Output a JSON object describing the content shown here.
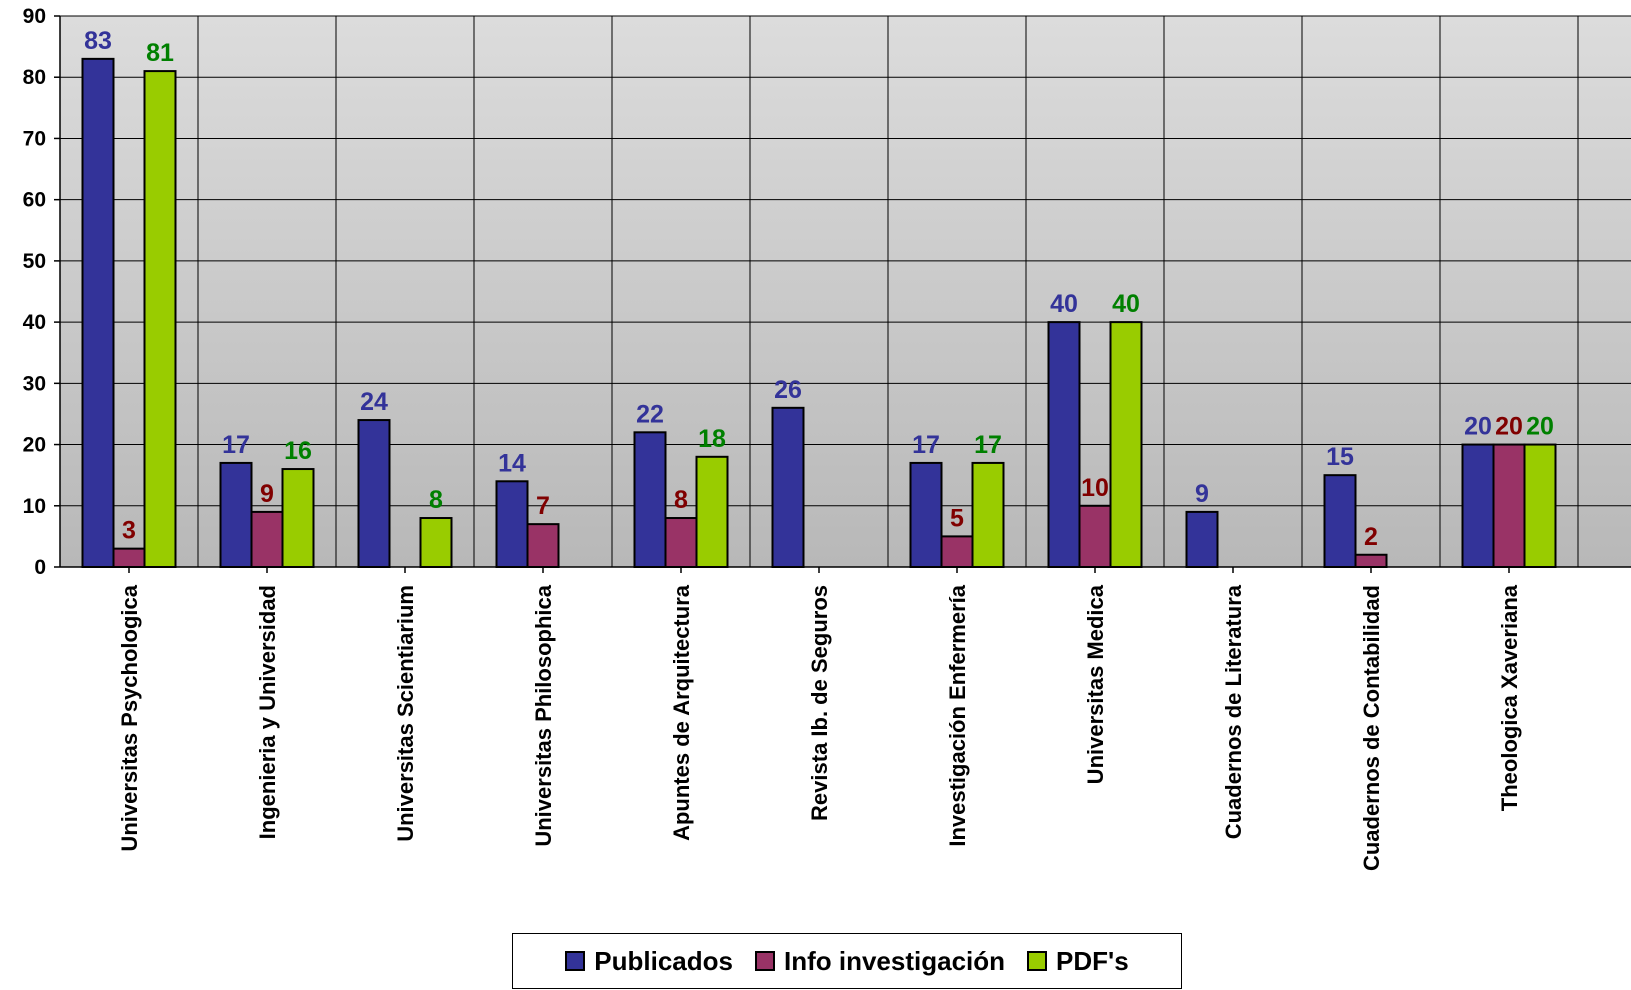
{
  "colors": {
    "publicados": "#333399",
    "info": "#993366",
    "pdf": "#99CC00",
    "label_publicados": "#333399",
    "label_info": "#800000",
    "label_pdf": "#008000"
  },
  "chart_data": {
    "type": "bar",
    "title": "",
    "xlabel": "",
    "ylabel": "",
    "ylim": [
      0,
      90
    ],
    "yticks": [
      0,
      10,
      20,
      30,
      40,
      50,
      60,
      70,
      80,
      90
    ],
    "grid": true,
    "legend_position": "bottom",
    "categories": [
      "Universitas Psychologica",
      "Ingenieria y Universidad",
      "Universitas Scientiarium",
      "Universitas Philosophica",
      "Apuntes de Arquitectura",
      "Revista Ib. de Seguros",
      "Investigación Enfermería",
      "Universitas Medica",
      "Cuadernos de Literatura",
      "Cuadernos de Contabilidad",
      "Theologica Xaveriana"
    ],
    "series": [
      {
        "name": "Publicados",
        "values": [
          83,
          17,
          24,
          14,
          22,
          26,
          17,
          40,
          9,
          15,
          20
        ]
      },
      {
        "name": "Info investigación",
        "values": [
          3,
          9,
          null,
          7,
          8,
          null,
          5,
          10,
          null,
          2,
          20
        ]
      },
      {
        "name": "PDF's",
        "values": [
          81,
          16,
          8,
          null,
          18,
          null,
          17,
          40,
          null,
          null,
          20
        ]
      }
    ]
  }
}
